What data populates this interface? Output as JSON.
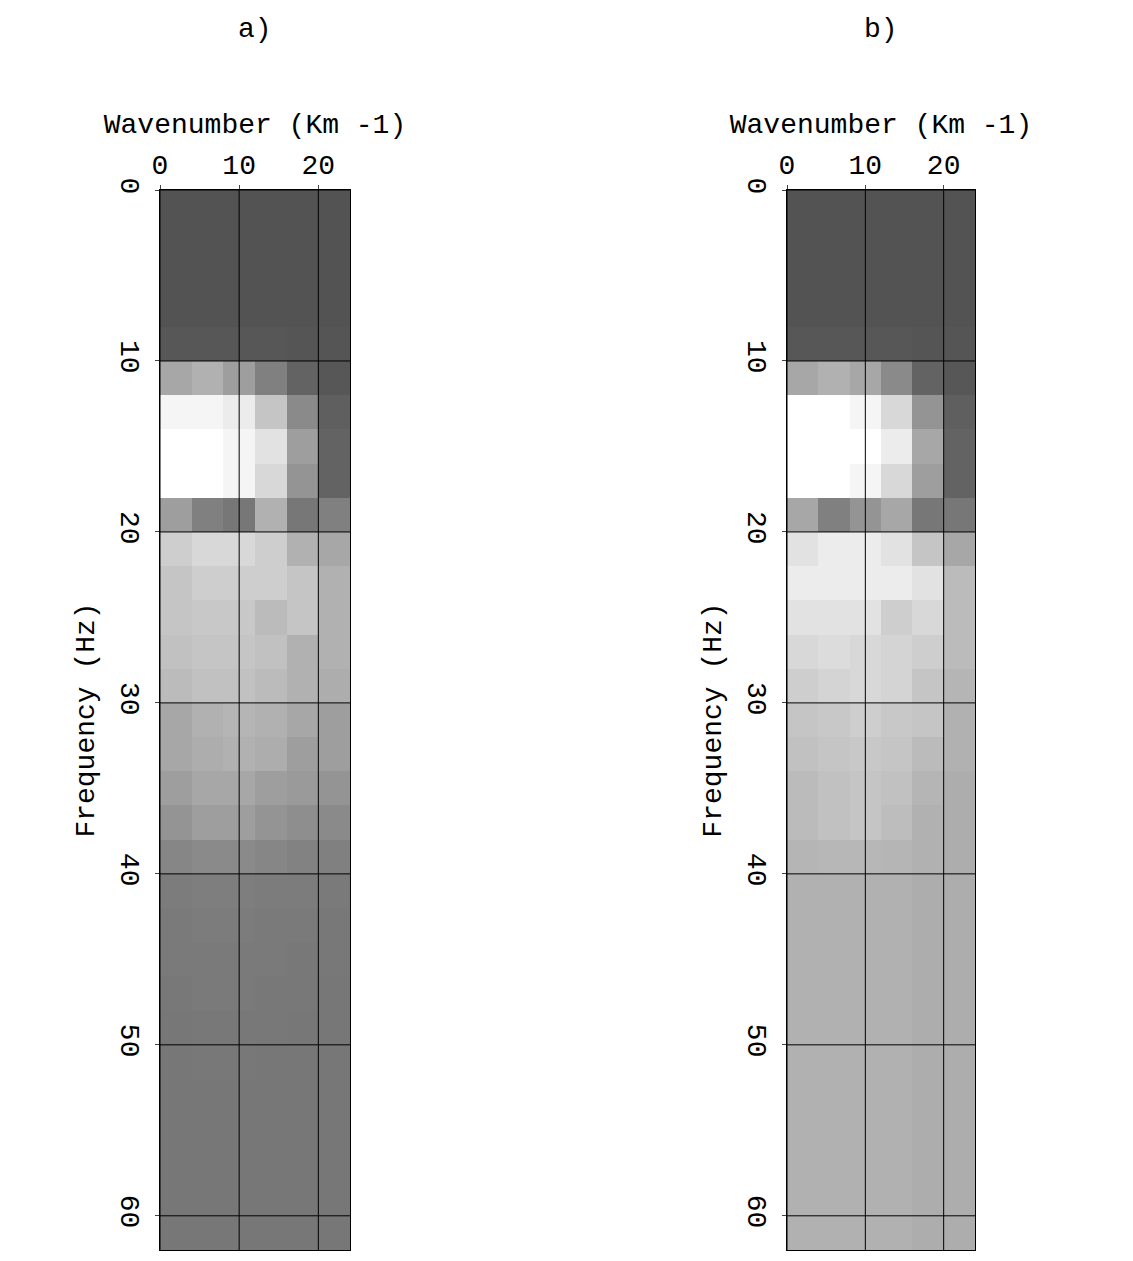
{
  "chart_data": [
    {
      "type": "heatmap",
      "title": "a)",
      "x_label": "Wavenumber (Km -1)",
      "y_label": "Frequency (Hz)",
      "x": [
        2,
        6,
        10,
        14,
        18,
        22
      ],
      "y": [
        1,
        3,
        5,
        7,
        9,
        11,
        13,
        15,
        17,
        19,
        21,
        23,
        25,
        27,
        29,
        31,
        33,
        35,
        37,
        39,
        41,
        43,
        45,
        47,
        49,
        51,
        53,
        55,
        57,
        59,
        61
      ],
      "z": [
        [
          0.12,
          0.12,
          0.12,
          0.12,
          0.12,
          0.12
        ],
        [
          0.12,
          0.12,
          0.12,
          0.12,
          0.12,
          0.12
        ],
        [
          0.12,
          0.12,
          0.12,
          0.12,
          0.12,
          0.12
        ],
        [
          0.12,
          0.12,
          0.12,
          0.12,
          0.12,
          0.12
        ],
        [
          0.14,
          0.14,
          0.14,
          0.14,
          0.13,
          0.13
        ],
        [
          0.55,
          0.6,
          0.5,
          0.35,
          0.2,
          0.14
        ],
        [
          0.95,
          0.95,
          0.9,
          0.7,
          0.4,
          0.18
        ],
        [
          1,
          1,
          0.95,
          0.85,
          0.5,
          0.2
        ],
        [
          1,
          1,
          0.95,
          0.8,
          0.45,
          0.2
        ],
        [
          0.5,
          0.35,
          0.3,
          0.6,
          0.3,
          0.35
        ],
        [
          0.75,
          0.8,
          0.8,
          0.75,
          0.6,
          0.55
        ],
        [
          0.7,
          0.75,
          0.75,
          0.75,
          0.7,
          0.6
        ],
        [
          0.7,
          0.72,
          0.72,
          0.65,
          0.7,
          0.6
        ],
        [
          0.68,
          0.7,
          0.7,
          0.68,
          0.6,
          0.6
        ],
        [
          0.65,
          0.68,
          0.68,
          0.65,
          0.6,
          0.58
        ],
        [
          0.55,
          0.6,
          0.62,
          0.6,
          0.55,
          0.5
        ],
        [
          0.55,
          0.58,
          0.6,
          0.58,
          0.5,
          0.5
        ],
        [
          0.5,
          0.55,
          0.55,
          0.5,
          0.48,
          0.45
        ],
        [
          0.45,
          0.5,
          0.5,
          0.45,
          0.42,
          0.4
        ],
        [
          0.38,
          0.4,
          0.4,
          0.38,
          0.36,
          0.35
        ],
        [
          0.33,
          0.34,
          0.34,
          0.33,
          0.33,
          0.32
        ],
        [
          0.32,
          0.33,
          0.33,
          0.32,
          0.32,
          0.31
        ],
        [
          0.32,
          0.32,
          0.32,
          0.32,
          0.31,
          0.31
        ],
        [
          0.31,
          0.32,
          0.32,
          0.31,
          0.31,
          0.3
        ],
        [
          0.3,
          0.31,
          0.31,
          0.31,
          0.3,
          0.3
        ],
        [
          0.3,
          0.31,
          0.31,
          0.3,
          0.3,
          0.3
        ],
        [
          0.3,
          0.3,
          0.3,
          0.3,
          0.3,
          0.3
        ],
        [
          0.3,
          0.3,
          0.3,
          0.3,
          0.3,
          0.3
        ],
        [
          0.3,
          0.3,
          0.3,
          0.3,
          0.3,
          0.3
        ],
        [
          0.3,
          0.3,
          0.3,
          0.3,
          0.3,
          0.3
        ],
        [
          0.3,
          0.3,
          0.3,
          0.3,
          0.3,
          0.3
        ]
      ],
      "zlim": [
        0,
        1
      ],
      "colors": [
        "#3c3c3c",
        "#ffffff"
      ],
      "xlim": [
        0,
        24
      ],
      "xticks": [
        0,
        10,
        20
      ],
      "ylim": [
        62,
        0
      ],
      "yticks": [
        0,
        10,
        20,
        30,
        40,
        50,
        60
      ],
      "grid": true
    },
    {
      "type": "heatmap",
      "title": "b)",
      "x_label": "Wavenumber (Km -1)",
      "y_label": "Frequency (Hz)",
      "x": [
        2,
        6,
        10,
        14,
        18,
        22
      ],
      "y": [
        1,
        3,
        5,
        7,
        9,
        11,
        13,
        15,
        17,
        19,
        21,
        23,
        25,
        27,
        29,
        31,
        33,
        35,
        37,
        39,
        41,
        43,
        45,
        47,
        49,
        51,
        53,
        55,
        57,
        59,
        61
      ],
      "z": [
        [
          0.12,
          0.12,
          0.12,
          0.12,
          0.12,
          0.12
        ],
        [
          0.12,
          0.12,
          0.12,
          0.12,
          0.12,
          0.12
        ],
        [
          0.12,
          0.12,
          0.12,
          0.12,
          0.12,
          0.12
        ],
        [
          0.12,
          0.12,
          0.12,
          0.12,
          0.12,
          0.12
        ],
        [
          0.14,
          0.14,
          0.14,
          0.14,
          0.13,
          0.13
        ],
        [
          0.55,
          0.6,
          0.55,
          0.4,
          0.2,
          0.14
        ],
        [
          1,
          1,
          0.95,
          0.8,
          0.45,
          0.18
        ],
        [
          1,
          1,
          1,
          0.9,
          0.55,
          0.2
        ],
        [
          1,
          1,
          0.95,
          0.8,
          0.5,
          0.2
        ],
        [
          0.55,
          0.35,
          0.45,
          0.55,
          0.3,
          0.3
        ],
        [
          0.85,
          0.9,
          0.9,
          0.85,
          0.7,
          0.55
        ],
        [
          0.9,
          0.9,
          0.9,
          0.9,
          0.85,
          0.65
        ],
        [
          0.85,
          0.85,
          0.85,
          0.75,
          0.8,
          0.65
        ],
        [
          0.8,
          0.82,
          0.8,
          0.78,
          0.75,
          0.65
        ],
        [
          0.75,
          0.78,
          0.8,
          0.78,
          0.7,
          0.62
        ],
        [
          0.7,
          0.72,
          0.75,
          0.72,
          0.7,
          0.6
        ],
        [
          0.68,
          0.7,
          0.72,
          0.7,
          0.65,
          0.6
        ],
        [
          0.65,
          0.68,
          0.7,
          0.68,
          0.62,
          0.58
        ],
        [
          0.65,
          0.68,
          0.7,
          0.66,
          0.6,
          0.58
        ],
        [
          0.62,
          0.63,
          0.63,
          0.62,
          0.6,
          0.58
        ],
        [
          0.6,
          0.6,
          0.6,
          0.6,
          0.58,
          0.58
        ],
        [
          0.6,
          0.6,
          0.6,
          0.6,
          0.58,
          0.58
        ],
        [
          0.6,
          0.6,
          0.6,
          0.6,
          0.58,
          0.58
        ],
        [
          0.6,
          0.6,
          0.6,
          0.6,
          0.58,
          0.58
        ],
        [
          0.6,
          0.6,
          0.6,
          0.6,
          0.58,
          0.58
        ],
        [
          0.6,
          0.6,
          0.6,
          0.6,
          0.58,
          0.58
        ],
        [
          0.6,
          0.6,
          0.6,
          0.6,
          0.58,
          0.58
        ],
        [
          0.6,
          0.6,
          0.6,
          0.6,
          0.58,
          0.58
        ],
        [
          0.6,
          0.6,
          0.6,
          0.6,
          0.58,
          0.58
        ],
        [
          0.6,
          0.6,
          0.6,
          0.6,
          0.58,
          0.58
        ],
        [
          0.6,
          0.6,
          0.6,
          0.6,
          0.58,
          0.58
        ]
      ],
      "zlim": [
        0,
        1
      ],
      "colors": [
        "#3c3c3c",
        "#ffffff"
      ],
      "xlim": [
        0,
        24
      ],
      "xticks": [
        0,
        10,
        20
      ],
      "ylim": [
        62,
        0
      ],
      "yticks": [
        0,
        10,
        20,
        30,
        40,
        50,
        60
      ],
      "grid": true
    }
  ]
}
